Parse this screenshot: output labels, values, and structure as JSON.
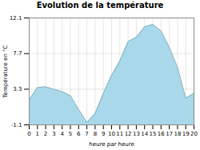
{
  "chart_data": {
    "type": "area",
    "title": "Evolution de la température",
    "xlabel": "heure par heure",
    "ylabel": "Température en °C",
    "x": [
      0,
      1,
      2,
      3,
      4,
      5,
      6,
      7,
      8,
      9,
      10,
      11,
      12,
      13,
      14,
      15,
      16,
      17,
      18,
      19,
      20
    ],
    "values": [
      2.0,
      3.5,
      3.6,
      3.3,
      3.0,
      2.5,
      0.8,
      -0.8,
      0.3,
      2.8,
      5.0,
      6.8,
      9.2,
      9.7,
      11.0,
      11.3,
      10.5,
      8.5,
      6.0,
      2.2,
      2.8
    ],
    "color": "#a8d8ea",
    "xlim": [
      0,
      20
    ],
    "xticks": [
      0,
      1,
      2,
      3,
      4,
      5,
      6,
      7,
      8,
      9,
      10,
      11,
      12,
      13,
      14,
      15,
      16,
      17,
      18,
      19,
      20
    ],
    "ylim": [
      -1.1,
      12.1
    ],
    "yticks": [
      -1.1,
      3.3,
      7.7,
      12.1
    ],
    "grid": true
  }
}
